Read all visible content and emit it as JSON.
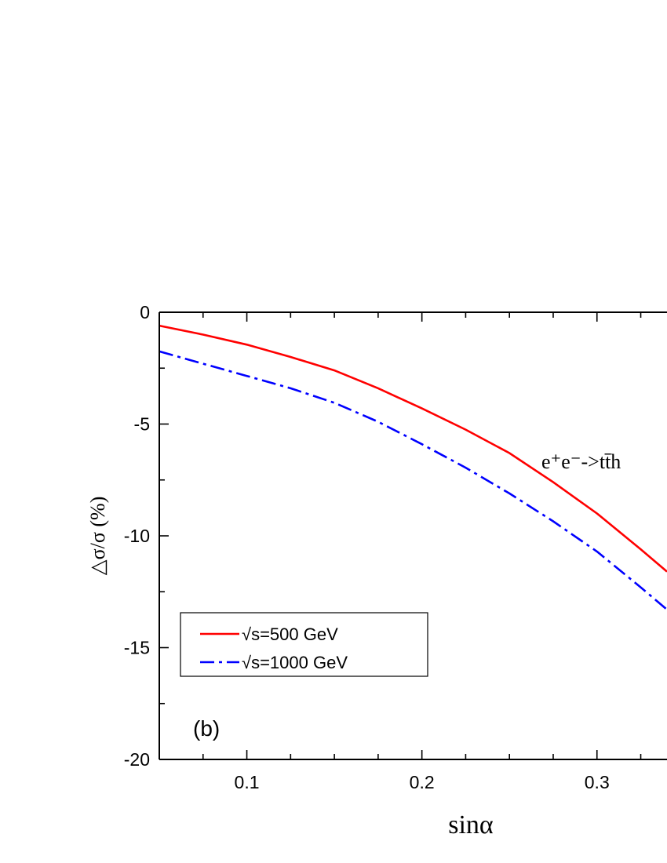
{
  "chart_data": {
    "type": "line",
    "title": "",
    "xlabel": "sinα",
    "ylabel": "△σ/σ (%)",
    "xlim": [
      0.05,
      0.34
    ],
    "ylim": [
      -20,
      0
    ],
    "x_ticks": [
      0.1,
      0.2,
      0.3
    ],
    "x_tick_labels": [
      "0.1",
      "0.2",
      "0.3"
    ],
    "y_ticks": [
      0,
      -5,
      -10,
      -15,
      -20
    ],
    "y_tick_labels": [
      "0",
      "-5",
      "-10",
      "-15",
      "-20"
    ],
    "grid": false,
    "legend_position": "bottom-left",
    "panel_label": "(b)",
    "annotation": "e⁺e⁻->tt̄h",
    "series": [
      {
        "name": "√s=500 GeV",
        "color": "#ff0000",
        "dash": "solid",
        "x": [
          0.05,
          0.075,
          0.1,
          0.125,
          0.15,
          0.175,
          0.2,
          0.225,
          0.25,
          0.275,
          0.3,
          0.325,
          0.34
        ],
        "y": [
          -0.6,
          -1.0,
          -1.45,
          -2.0,
          -2.6,
          -3.4,
          -4.3,
          -5.25,
          -6.3,
          -7.6,
          -9.0,
          -10.6,
          -11.6
        ]
      },
      {
        "name": "√s=1000 GeV",
        "color": "#0000ff",
        "dash": "dashdot",
        "x": [
          0.05,
          0.075,
          0.1,
          0.125,
          0.15,
          0.175,
          0.2,
          0.225,
          0.25,
          0.275,
          0.3,
          0.325,
          0.34
        ],
        "y": [
          -1.75,
          -2.3,
          -2.85,
          -3.4,
          -4.05,
          -4.9,
          -5.9,
          -6.95,
          -8.1,
          -9.35,
          -10.7,
          -12.3,
          -13.3
        ]
      }
    ]
  }
}
